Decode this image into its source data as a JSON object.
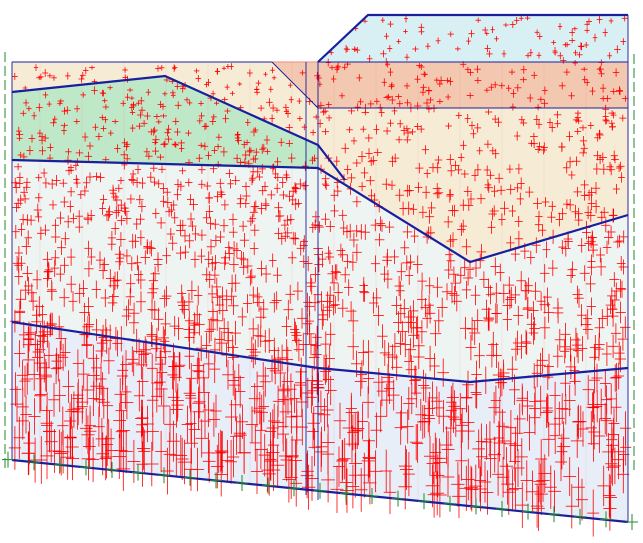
{
  "diagram": {
    "kind": "geotechnical-cross-section-stress-crosses",
    "colors": {
      "background": "#ffffff",
      "region_boundary": "#1a1f9c",
      "mesh_line": "#e06060",
      "stress_marker": "#ff0000",
      "support_marker": "#1f8a2a",
      "fill_top_right": "#d8f0f4",
      "fill_peach_band": "#f3c8b0",
      "fill_cream": "#f6ecd6",
      "fill_green": "#bfe8c8",
      "fill_light_green": "#e2f2e2",
      "fill_pale": "#eef4f2",
      "fill_bottom": "#e7eef8"
    },
    "regions": [
      {
        "name": "top-right-fill-region",
        "color_key": "fill_top_right"
      },
      {
        "name": "peach-band-region",
        "color_key": "fill_peach_band"
      },
      {
        "name": "cream-upper-left-region",
        "color_key": "fill_cream"
      },
      {
        "name": "green-wedge-region",
        "color_key": "fill_green"
      },
      {
        "name": "middle-left-region",
        "color_key": "fill_light_green"
      },
      {
        "name": "lower-region",
        "color_key": "fill_pale"
      },
      {
        "name": "bottom-region",
        "color_key": "fill_bottom"
      }
    ]
  }
}
